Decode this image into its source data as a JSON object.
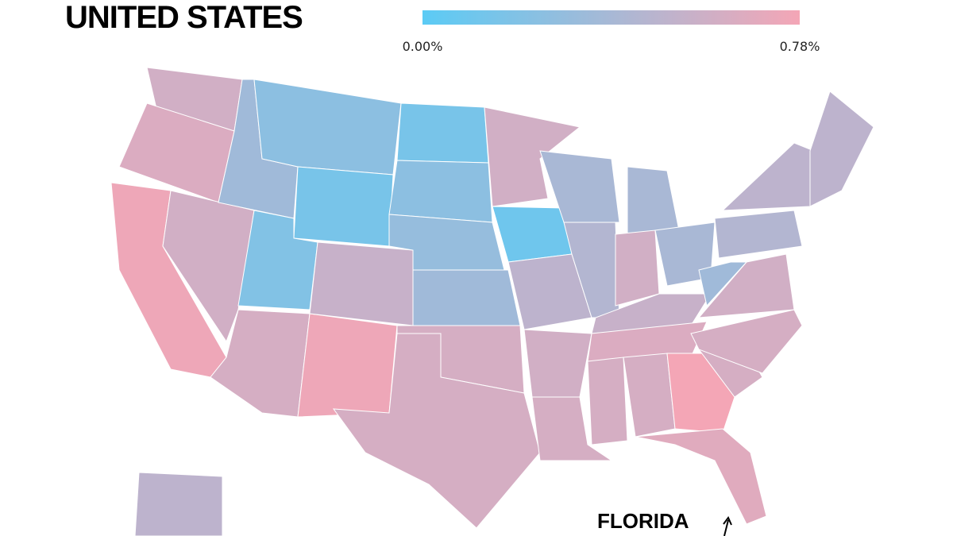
{
  "title": "UNITED STATES",
  "legend": {
    "ticks": [
      {
        "value": 0,
        "label": "0.00%"
      },
      {
        "value": 0.78,
        "label": "0.78%"
      }
    ],
    "colors": [
      "#5bcbf5",
      "#f4a6b6"
    ]
  },
  "annotation": "FLORIDA",
  "state_values": [
    0.6,
    0.65,
    0.75,
    0.6,
    0.35,
    0.25,
    0.15,
    0.2,
    0.62,
    0.75,
    0.55,
    0.15,
    0.25,
    0.3,
    0.35,
    0.62,
    0.62,
    0.6,
    0.1,
    0.5,
    0.6,
    0.62,
    0.4,
    0.45,
    0.4,
    0.6,
    0.4,
    0.55,
    0.65,
    0.62,
    0.62,
    0.78,
    0.68,
    0.62,
    0.62,
    0.6,
    0.35,
    0.45,
    0.5,
    0.5,
    0.5
  ]
}
